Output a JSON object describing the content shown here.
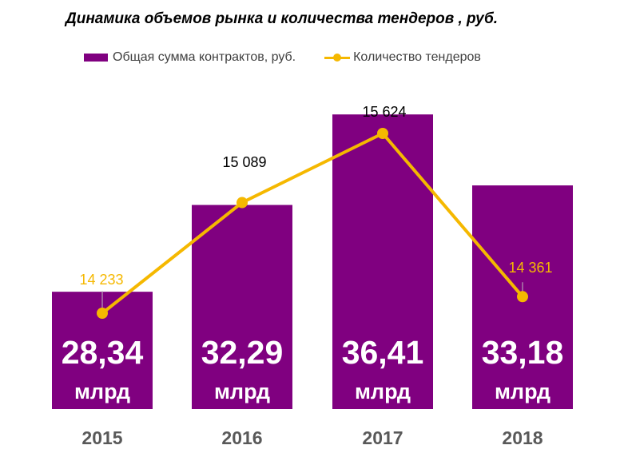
{
  "chart_data": {
    "type": "bar",
    "title": "Динамика объемов рынка и количества тендеров , руб.",
    "categories": [
      "2015",
      "2016",
      "2017",
      "2018"
    ],
    "series": [
      {
        "name": "Общая сумма контрактов, руб.",
        "type": "bar",
        "values": [
          28.34,
          32.29,
          36.41,
          33.18
        ],
        "labels": [
          "28,34",
          "32,29",
          "36,41",
          "33,18"
        ],
        "unit_label": "млрд",
        "color": "#800080"
      },
      {
        "name": "Количество тендеров",
        "type": "line",
        "values": [
          14233,
          15089,
          15624,
          14361
        ],
        "labels": [
          "14 233",
          "15 089",
          "15 624",
          "14 361"
        ],
        "color": "#F5B800"
      }
    ],
    "legend_position": "top",
    "grid": false,
    "xlabel": "",
    "ylabel": ""
  }
}
